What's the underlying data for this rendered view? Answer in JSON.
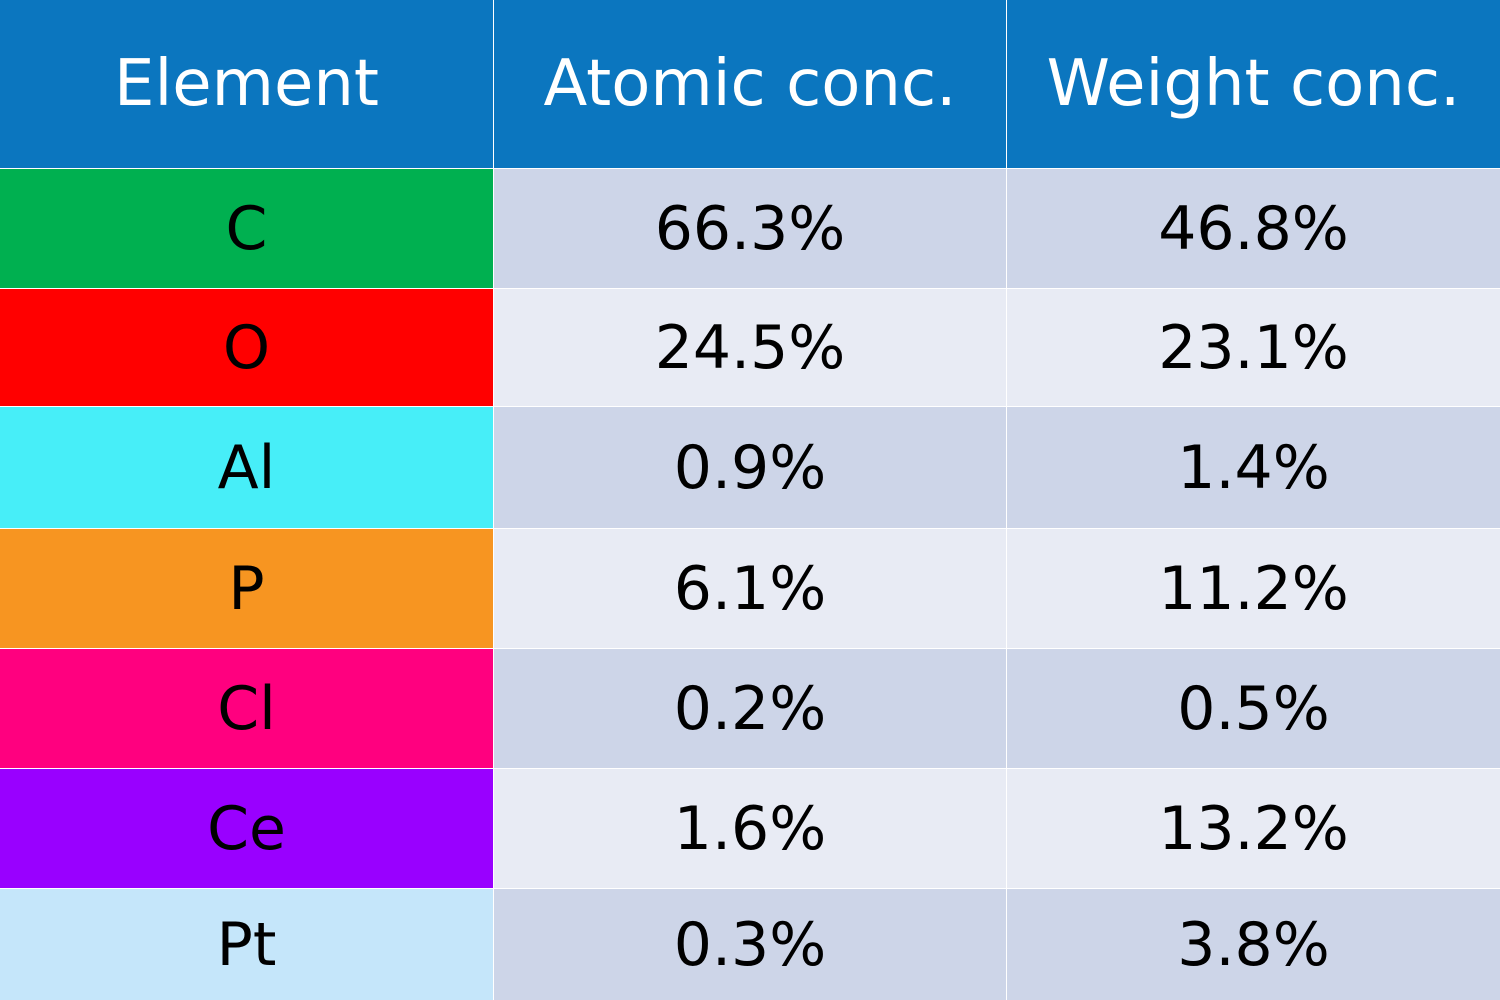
{
  "chart_data": {
    "type": "table",
    "header_color": "#0b76bf",
    "row_color_dark": "#cdd5e8",
    "row_color_light": "#e8ebf4",
    "columns": [
      "Element",
      "Atomic conc.",
      "Weight conc."
    ],
    "rows": [
      {
        "element": "C",
        "atomic": "66.3%",
        "weight": "46.8%",
        "color": "#00b050"
      },
      {
        "element": "O",
        "atomic": "24.5%",
        "weight": "23.1%",
        "color": "#ff0000"
      },
      {
        "element": "Al",
        "atomic": "0.9%",
        "weight": "1.4%",
        "color": "#47eef8"
      },
      {
        "element": "P",
        "atomic": "6.1%",
        "weight": "11.2%",
        "color": "#f79521"
      },
      {
        "element": "Cl",
        "atomic": "0.2%",
        "weight": "0.5%",
        "color": "#ff007f"
      },
      {
        "element": "Ce",
        "atomic": "1.6%",
        "weight": "13.2%",
        "color": "#9900ff"
      },
      {
        "element": "Pt",
        "atomic": "0.3%",
        "weight": "3.8%",
        "color": "#c5e6fa"
      }
    ]
  }
}
